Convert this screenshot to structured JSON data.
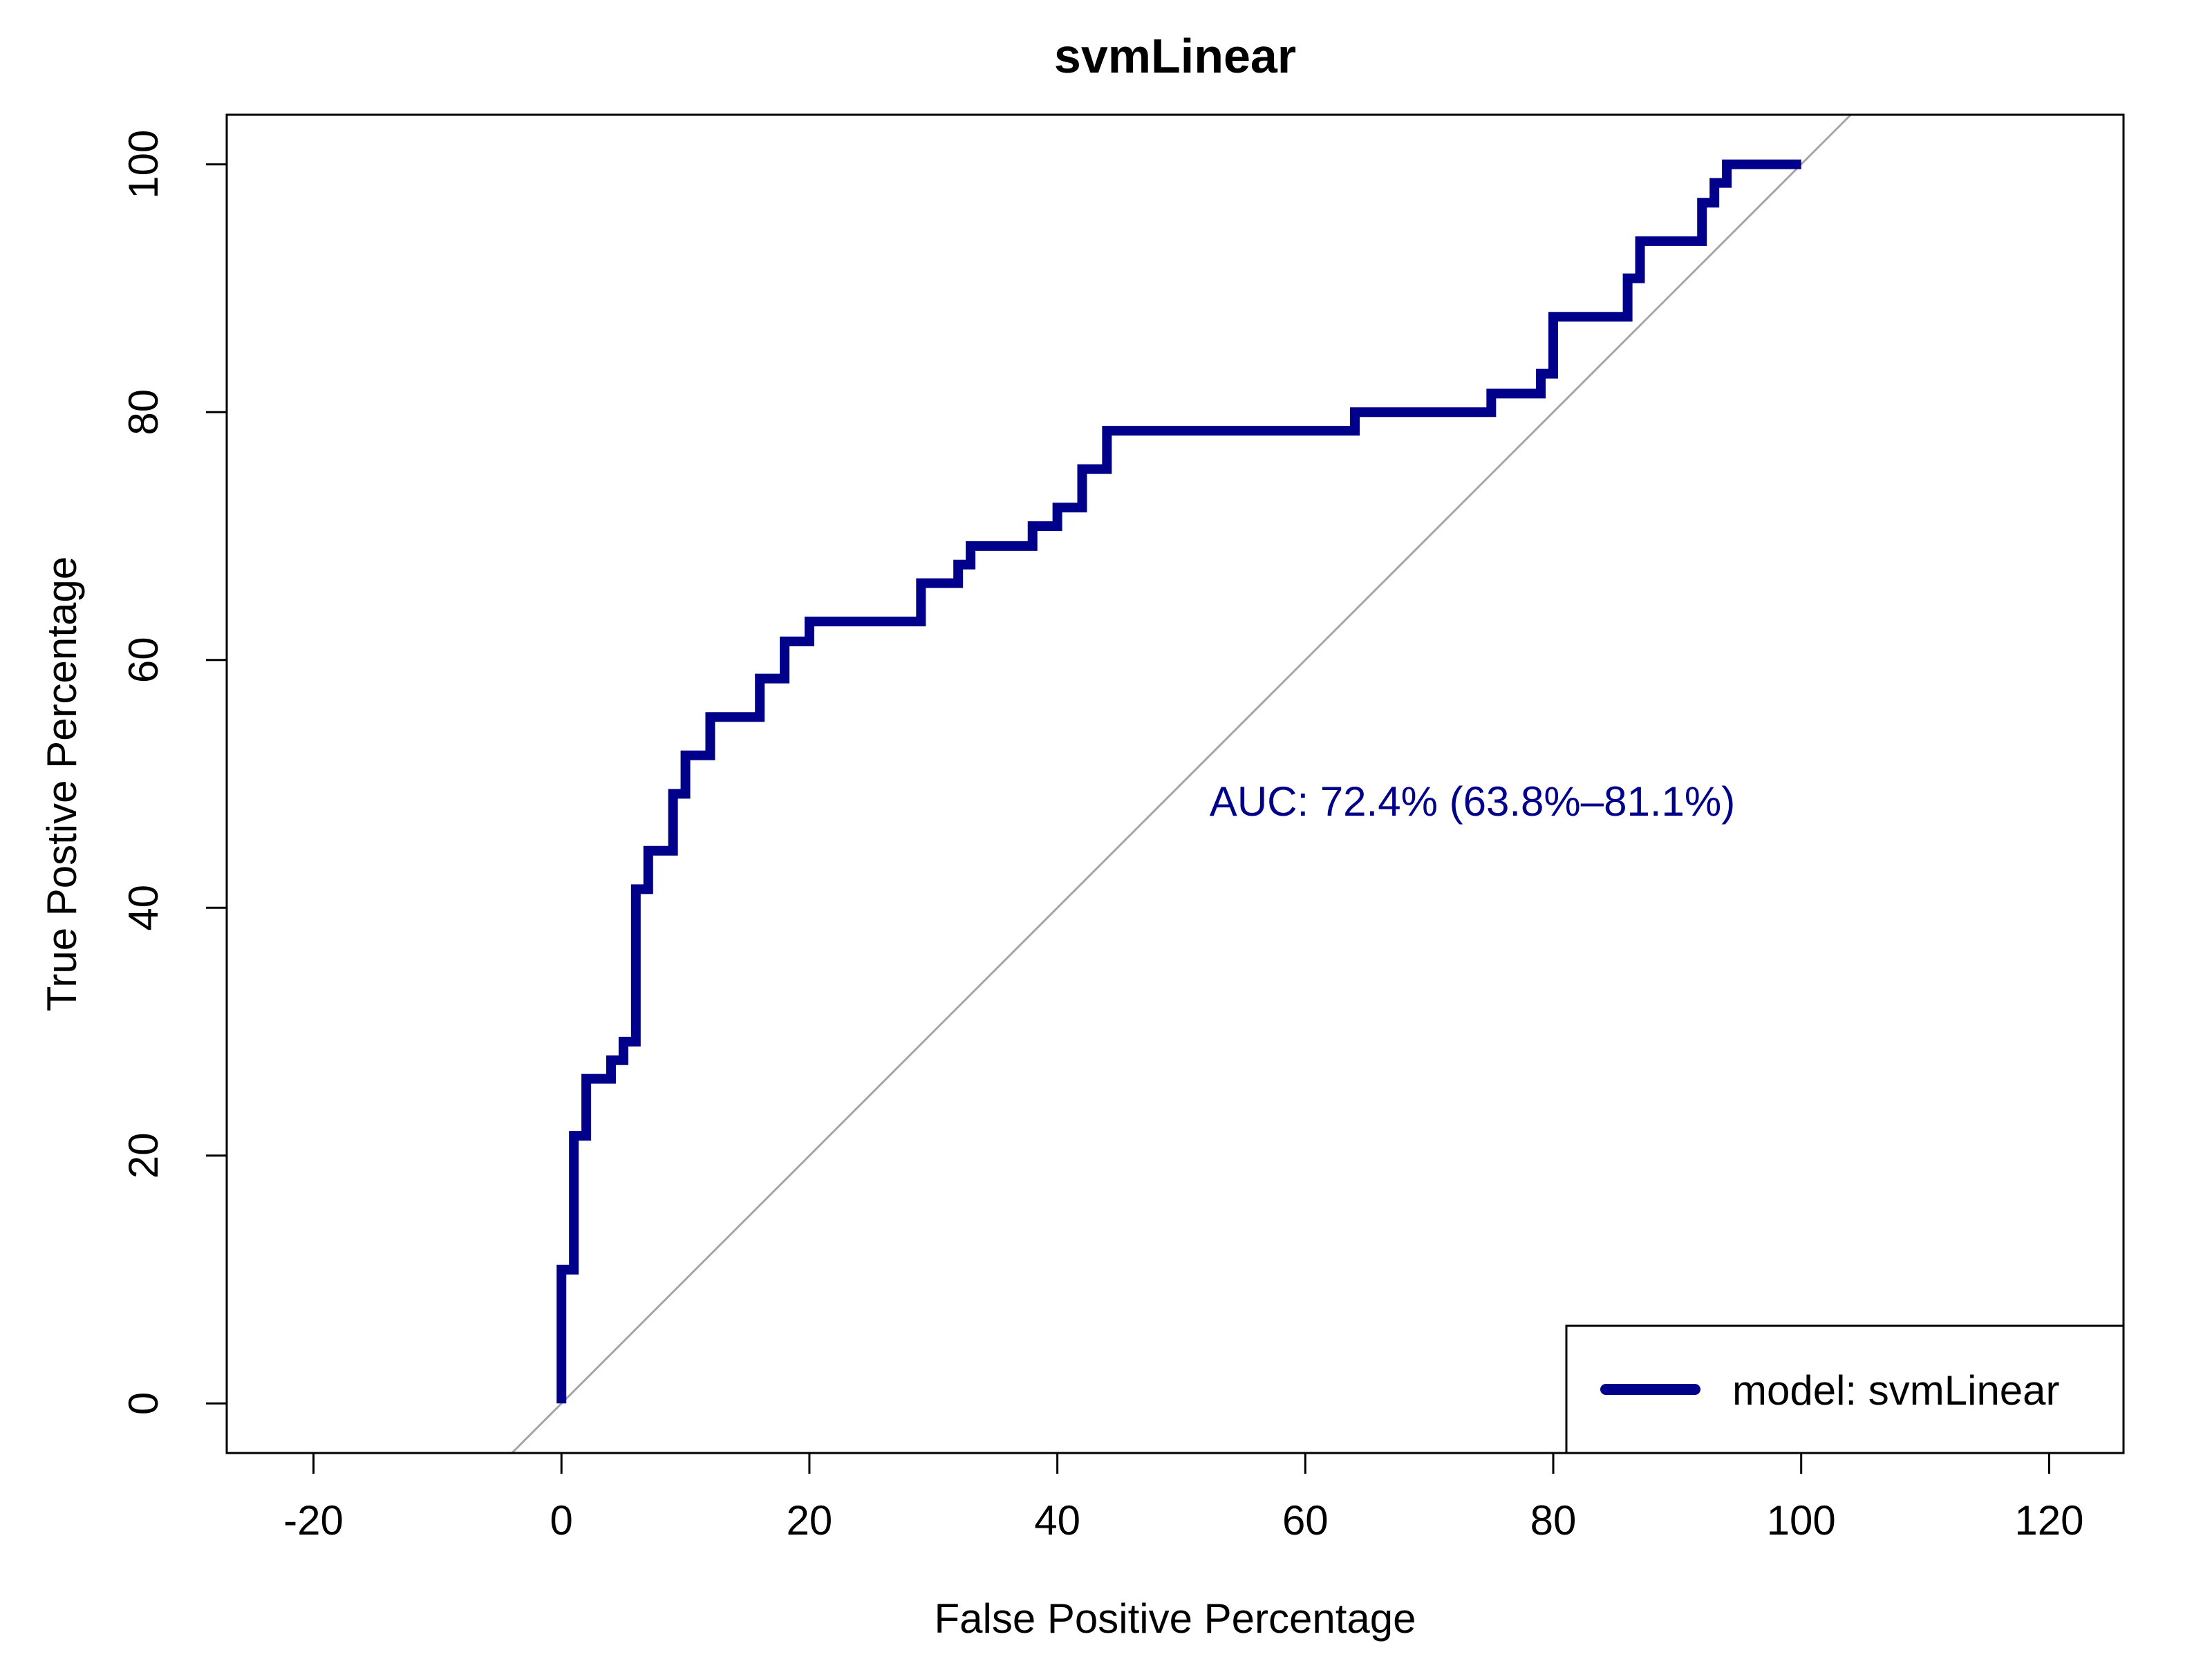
{
  "chart_data": {
    "type": "line",
    "title": "svmLinear",
    "xlabel": "False Positive Percentage",
    "ylabel": "True Postive Percentage",
    "xlim": [
      -27,
      126
    ],
    "ylim": [
      -4,
      104
    ],
    "x_ticks": [
      -20,
      0,
      20,
      40,
      60,
      80,
      100,
      120
    ],
    "y_ticks": [
      0,
      20,
      40,
      60,
      80,
      100
    ],
    "x_tick_labels": [
      "-20",
      "0",
      "20",
      "40",
      "60",
      "80",
      "100",
      "120"
    ],
    "y_tick_labels": [
      "0",
      "20",
      "40",
      "60",
      "80",
      "100"
    ],
    "grid": false,
    "legend": {
      "position": "bottom-right",
      "entries": [
        "model: svmLinear"
      ]
    },
    "annotation": "AUC: 72.4% (63.8%–81.1%)",
    "reference_line": {
      "x": [
        -4,
        104
      ],
      "y": [
        -4,
        104
      ],
      "color": "#a6a6a6"
    },
    "series": [
      {
        "name": "model: svmLinear",
        "color": "#00008b",
        "x": [
          0,
          0,
          1,
          1,
          2,
          2,
          4,
          4,
          5,
          5,
          6,
          6,
          7,
          7,
          9,
          9,
          10,
          10,
          12,
          12,
          16,
          16,
          18,
          18,
          20,
          20,
          29,
          29,
          32,
          32,
          33,
          33,
          38,
          38,
          40,
          40,
          42,
          42,
          44,
          44,
          64,
          64,
          75,
          75,
          79,
          79,
          80,
          80,
          86,
          86,
          87,
          87,
          92,
          92,
          93,
          93,
          94,
          94,
          100
        ],
        "y": [
          0,
          10.8,
          10.8,
          21.6,
          21.6,
          26.2,
          26.2,
          27.7,
          27.7,
          29.2,
          29.2,
          41.5,
          41.5,
          44.6,
          44.6,
          49.2,
          49.2,
          52.3,
          52.3,
          55.4,
          55.4,
          58.5,
          58.5,
          61.5,
          61.5,
          63.1,
          63.1,
          66.2,
          66.2,
          67.7,
          67.7,
          69.2,
          69.2,
          70.8,
          70.8,
          72.3,
          72.3,
          75.4,
          75.4,
          78.5,
          78.5,
          80.0,
          80.0,
          81.5,
          81.5,
          83.1,
          83.1,
          87.7,
          87.7,
          90.8,
          90.8,
          93.8,
          93.8,
          96.9,
          96.9,
          98.5,
          98.5,
          100,
          100
        ]
      }
    ]
  }
}
